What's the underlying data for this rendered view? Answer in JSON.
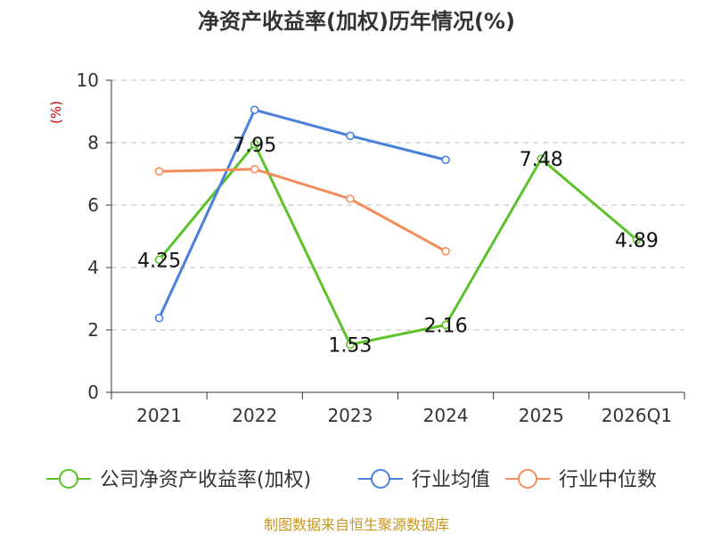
{
  "chart_data": {
    "type": "line",
    "title": "净资产收益率(加权)历年情况(%)",
    "ylabel": "(%)",
    "xlabel": "",
    "categories": [
      "2021",
      "2022",
      "2023",
      "2024",
      "2025",
      "2026Q1"
    ],
    "ylim": [
      0,
      10
    ],
    "yticks": [
      0,
      2,
      4,
      6,
      8,
      10
    ],
    "grid": true,
    "legend_position": "bottom",
    "series": [
      {
        "name": "公司净资产收益率(加权)",
        "color": "#5cc22a",
        "values": [
          4.25,
          7.95,
          1.53,
          2.16,
          7.48,
          4.89
        ],
        "labels": [
          "4.25",
          "7.95",
          "1.53",
          "2.16",
          "7.48",
          "4.89"
        ]
      },
      {
        "name": "行业均值",
        "color": "#4a7fdc",
        "values": [
          2.38,
          9.05,
          8.22,
          7.45,
          null,
          null
        ]
      },
      {
        "name": "行业中位数",
        "color": "#f48c5c",
        "values": [
          7.08,
          7.15,
          6.2,
          4.52,
          null,
          null
        ]
      }
    ]
  },
  "source_text": "制图数据来自恒生聚源数据库"
}
